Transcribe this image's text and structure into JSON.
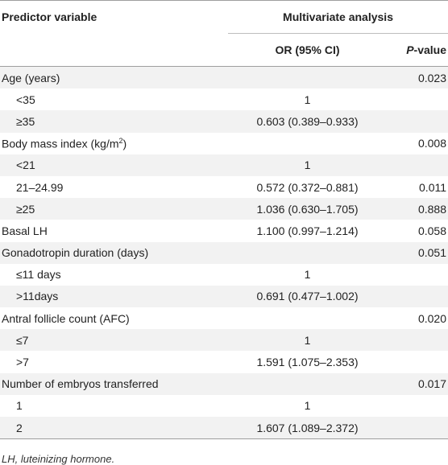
{
  "header": {
    "predictor_label": "Predictor variable",
    "group_label": "Multivariate analysis",
    "or_label": "OR (95% CI)",
    "p_label_italic": "P",
    "p_label_rest": "-value"
  },
  "rows": [
    {
      "label": "Age (years)",
      "or": "",
      "p": "0.023",
      "sub": false
    },
    {
      "label": "<35",
      "or": "1",
      "p": "",
      "sub": true
    },
    {
      "label": "≥35",
      "or": "0.603 (0.389–0.933)",
      "p": "",
      "sub": true
    },
    {
      "label": "Body mass index (kg/m",
      "sup": "2",
      "label_end": ")",
      "or": "",
      "p": "0.008",
      "sub": false
    },
    {
      "label": "<21",
      "or": "1",
      "p": "",
      "sub": true
    },
    {
      "label": "21–24.99",
      "or": "0.572 (0.372–0.881)",
      "p": "0.011",
      "sub": true
    },
    {
      "label": "≥25",
      "or": "1.036 (0.630–1.705)",
      "p": "0.888",
      "sub": true
    },
    {
      "label": "Basal LH",
      "or": "1.100 (0.997–1.214)",
      "p": "0.058",
      "sub": false
    },
    {
      "label": "Gonadotropin duration (days)",
      "or": "",
      "p": "0.051",
      "sub": false
    },
    {
      "label": "≤11 days",
      "or": "1",
      "p": "",
      "sub": true
    },
    {
      "label": ">11days",
      "or": "0.691 (0.477–1.002)",
      "p": "",
      "sub": true
    },
    {
      "label": "Antral follicle count (AFC)",
      "or": "",
      "p": "0.020",
      "sub": false
    },
    {
      "label": "≤7",
      "or": "1",
      "p": "",
      "sub": true
    },
    {
      "label": ">7",
      "or": "1.591 (1.075–2.353)",
      "p": "",
      "sub": true
    },
    {
      "label": "Number of embryos transferred",
      "or": "",
      "p": "0.017",
      "sub": false
    },
    {
      "label": "1",
      "or": "1",
      "p": "",
      "sub": true
    },
    {
      "label": "2",
      "or": "1.607 (1.089–2.372)",
      "p": "",
      "sub": true
    }
  ],
  "footnote": "LH, luteinizing hormone."
}
